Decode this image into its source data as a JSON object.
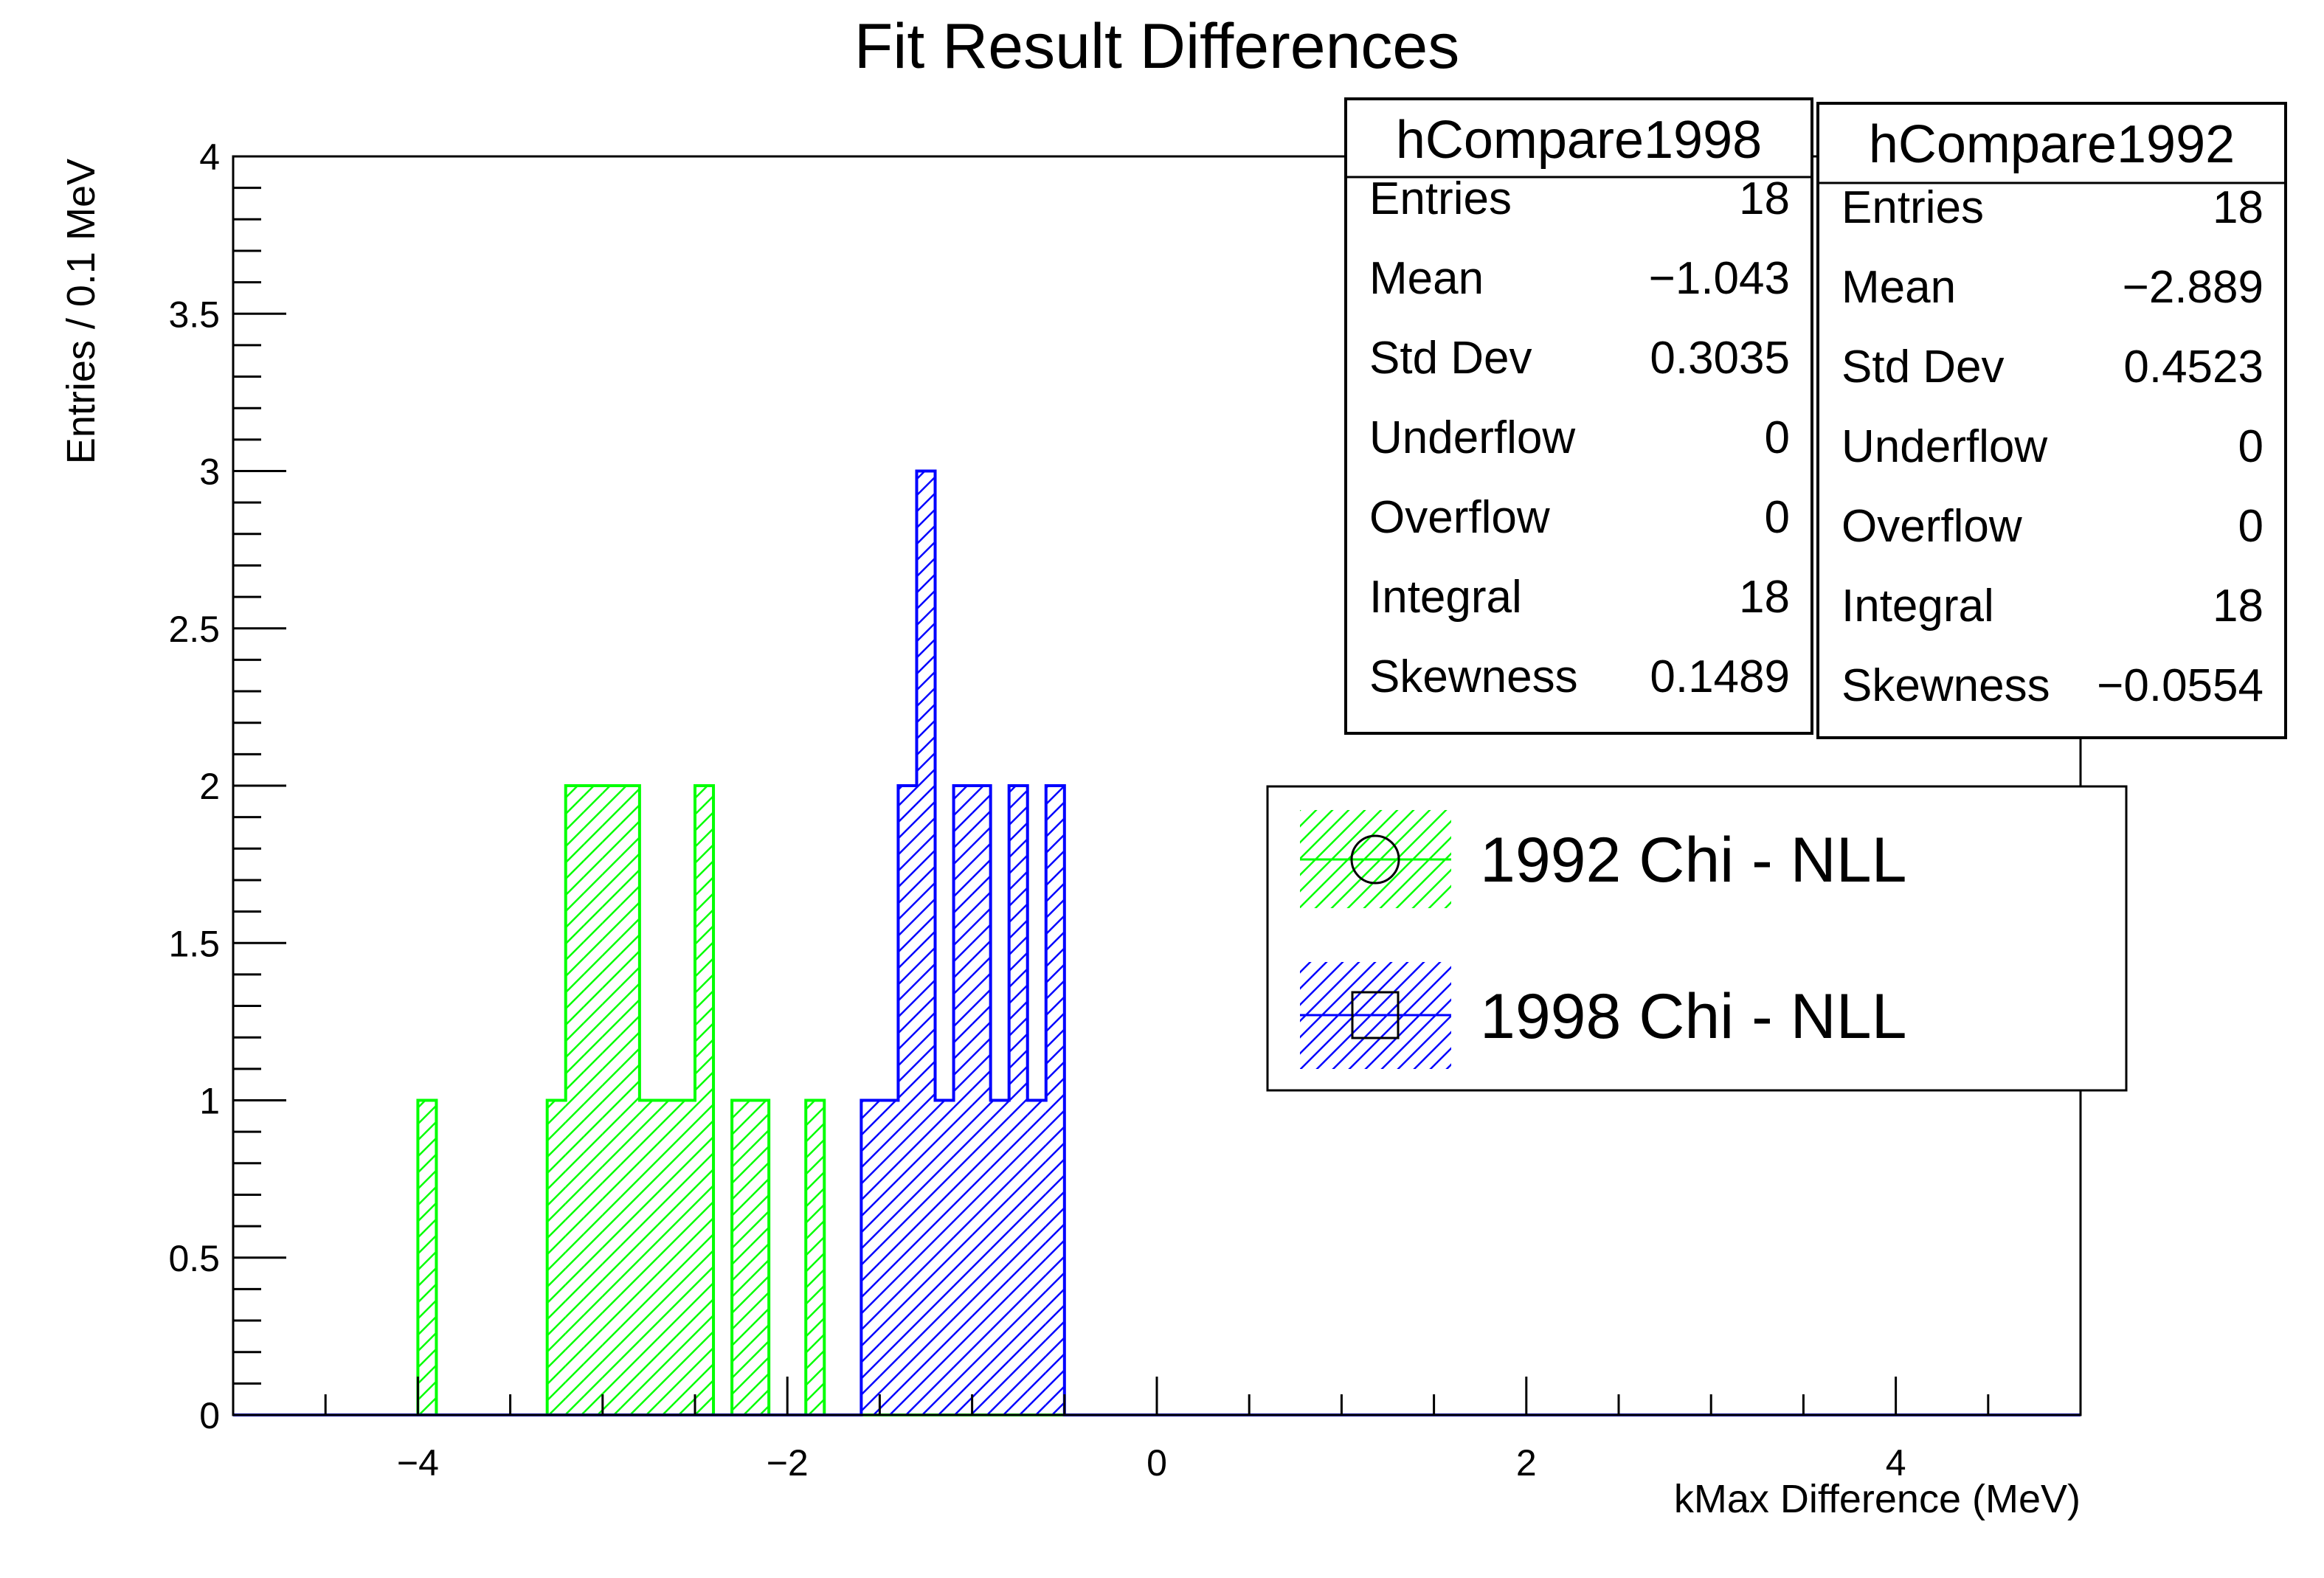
{
  "chart_data": {
    "type": "bar",
    "title": "Fit Result Differences",
    "xlabel": "kMax Difference (MeV)",
    "ylabel": "Entries / 0.1 MeV",
    "xlim": [
      -5,
      5
    ],
    "ylim": [
      0,
      4
    ],
    "bin_width": 0.1,
    "grid": false,
    "x_tick_labels": [
      "−4",
      "−2",
      "0",
      "2",
      "4"
    ],
    "x_tick_values": [
      -4,
      -2,
      0,
      2,
      4
    ],
    "y_tick_labels": [
      "0",
      "0.5",
      "1",
      "1.5",
      "2",
      "2.5",
      "3",
      "3.5",
      "4"
    ],
    "y_tick_values": [
      0,
      0.5,
      1,
      1.5,
      2,
      2.5,
      3,
      3.5,
      4
    ],
    "legend_position": "center-right",
    "series": [
      {
        "name": "1992 Chi - NLL",
        "color": "#00ff00",
        "marker": "circle",
        "hatch": "diagonal",
        "bins": [
          {
            "x": -4.0,
            "y": 1
          },
          {
            "x": -3.3,
            "y": 1
          },
          {
            "x": -3.2,
            "y": 2
          },
          {
            "x": -3.1,
            "y": 2
          },
          {
            "x": -3.0,
            "y": 2
          },
          {
            "x": -2.9,
            "y": 2
          },
          {
            "x": -2.8,
            "y": 1
          },
          {
            "x": -2.7,
            "y": 1
          },
          {
            "x": -2.6,
            "y": 1
          },
          {
            "x": -2.5,
            "y": 2
          },
          {
            "x": -2.3,
            "y": 1
          },
          {
            "x": -2.2,
            "y": 1
          },
          {
            "x": -1.9,
            "y": 1
          }
        ]
      },
      {
        "name": "1998 Chi - NLL",
        "color": "#0000ff",
        "marker": "square",
        "hatch": "diagonal",
        "bins": [
          {
            "x": -1.6,
            "y": 1
          },
          {
            "x": -1.5,
            "y": 1
          },
          {
            "x": -1.4,
            "y": 2
          },
          {
            "x": -1.3,
            "y": 3
          },
          {
            "x": -1.2,
            "y": 1
          },
          {
            "x": -1.1,
            "y": 2
          },
          {
            "x": -1.0,
            "y": 2
          },
          {
            "x": -0.9,
            "y": 1
          },
          {
            "x": -0.8,
            "y": 2
          },
          {
            "x": -0.7,
            "y": 1
          },
          {
            "x": -0.6,
            "y": 2
          }
        ]
      }
    ],
    "stats_boxes": [
      {
        "title": "hCompare1998",
        "rows": [
          {
            "label": "Entries",
            "value": "18"
          },
          {
            "label": "Mean",
            "value": "−1.043"
          },
          {
            "label": "Std Dev",
            "value": "0.3035"
          },
          {
            "label": "Underflow",
            "value": "0"
          },
          {
            "label": "Overflow",
            "value": "0"
          },
          {
            "label": "Integral",
            "value": "18"
          },
          {
            "label": "Skewness",
            "value": "0.1489"
          }
        ]
      },
      {
        "title": "hCompare1992",
        "rows": [
          {
            "label": "Entries",
            "value": "18"
          },
          {
            "label": "Mean",
            "value": "−2.889"
          },
          {
            "label": "Std Dev",
            "value": "0.4523"
          },
          {
            "label": "Underflow",
            "value": "0"
          },
          {
            "label": "Overflow",
            "value": "0"
          },
          {
            "label": "Integral",
            "value": "18"
          },
          {
            "label": "Skewness",
            "value": "−0.0554"
          }
        ]
      }
    ]
  }
}
